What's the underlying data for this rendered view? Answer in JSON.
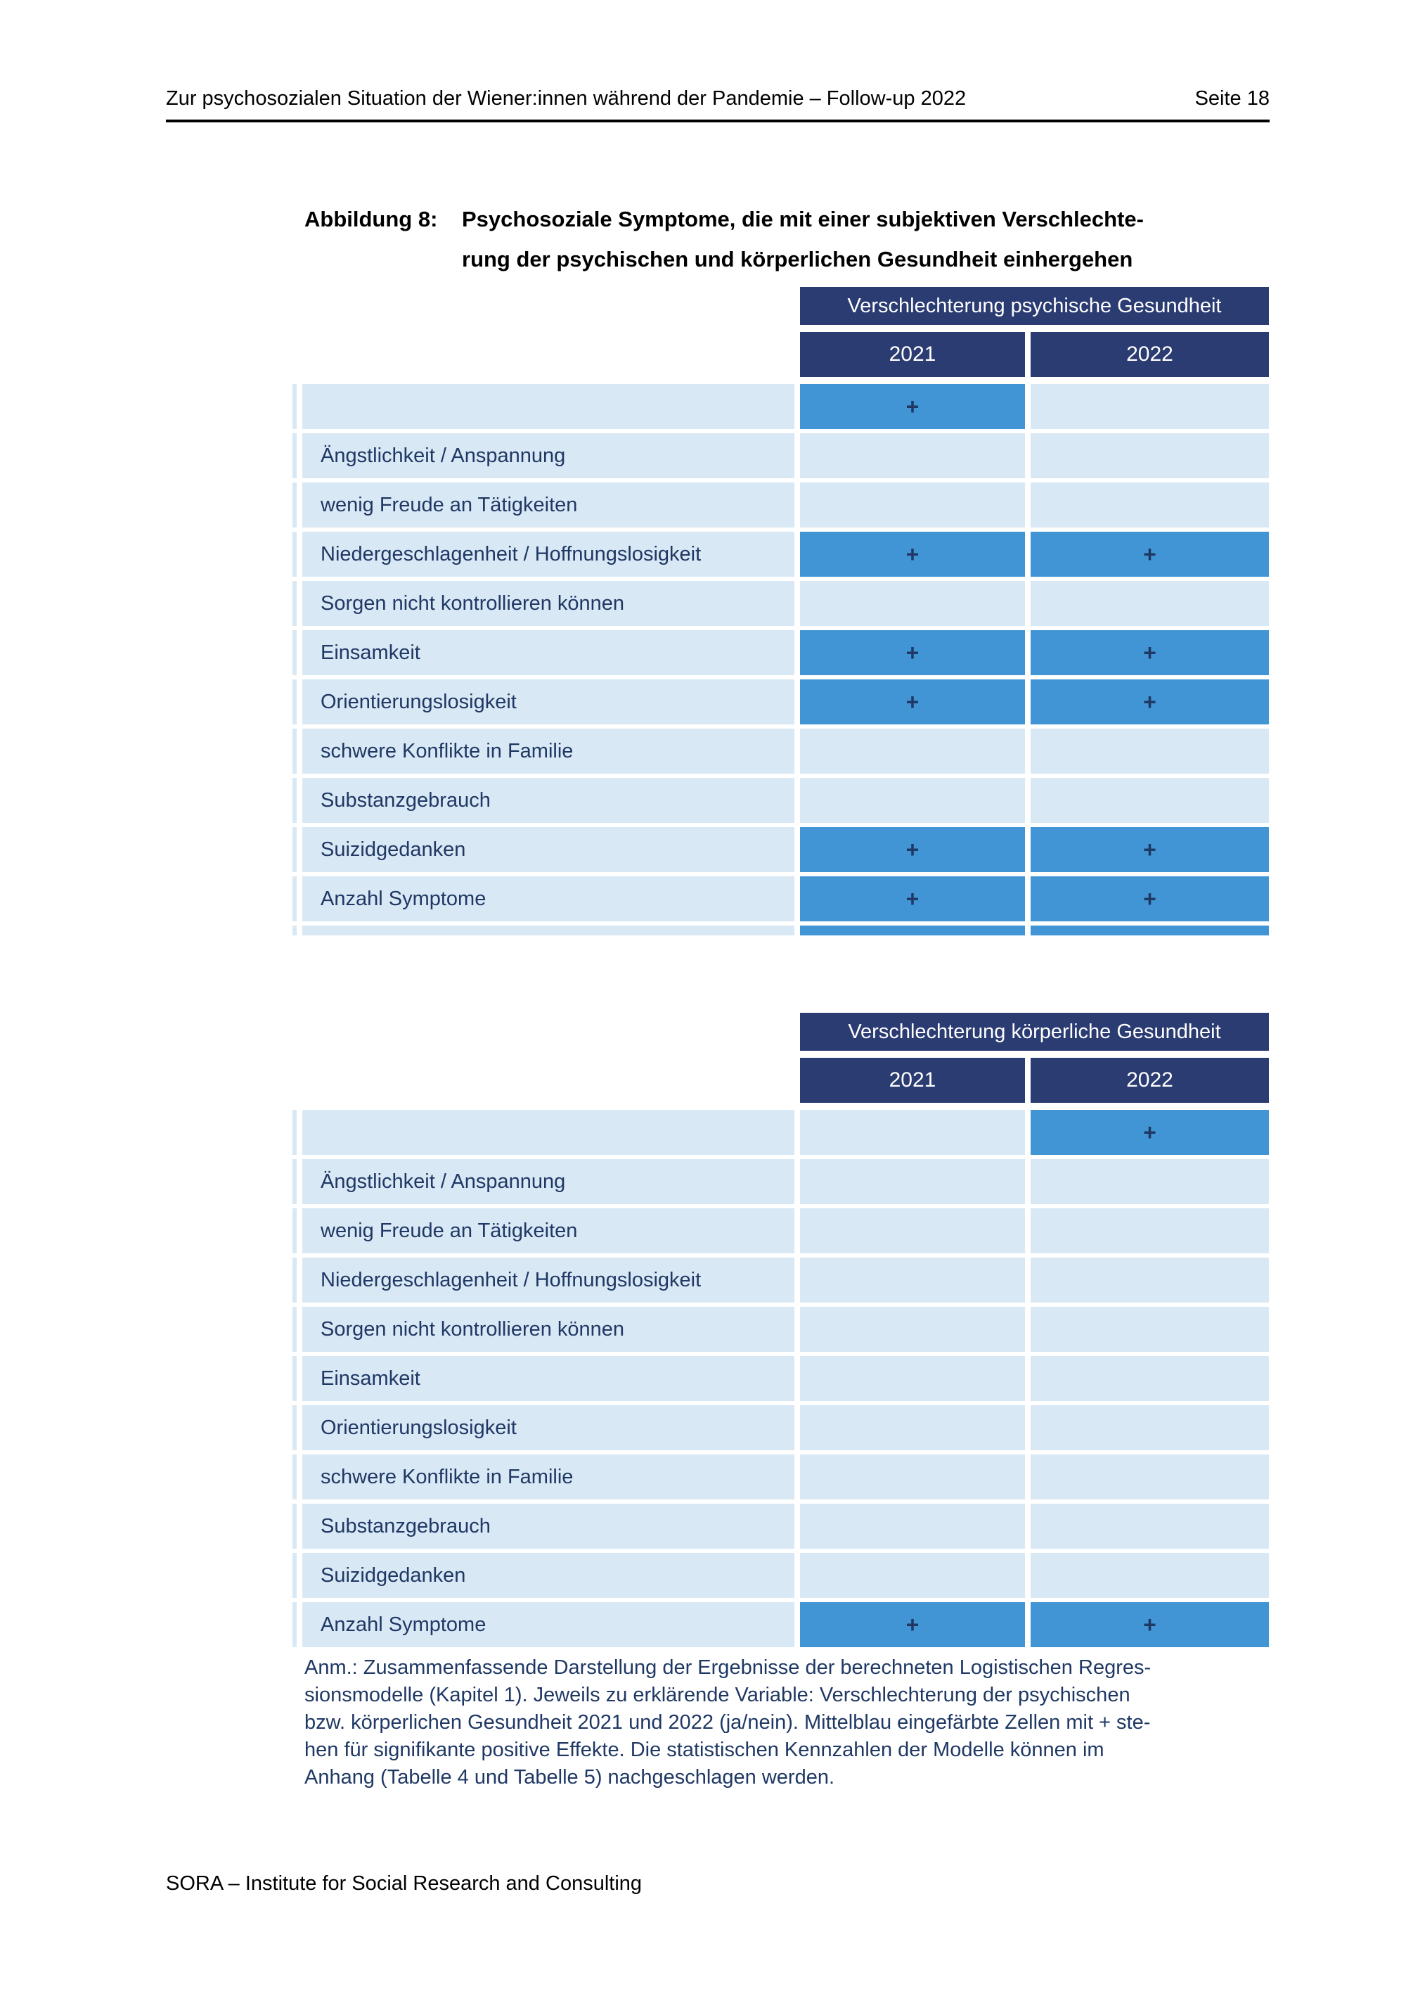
{
  "header": {
    "title": "Zur psychosozialen Situation der Wiener:innen während der Pandemie – Follow-up 2022",
    "page": "Seite 18"
  },
  "figure": {
    "label": "Abbildung 8:",
    "title_line1": "Psychosoziale Symptome, die mit einer subjektiven Verschlechte-",
    "title_line2": "rung der psychischen und körperlichen Gesundheit einhergehen"
  },
  "colors": {
    "navy": "#2B3C72",
    "mid_blue": "#4295D5",
    "light_blue": "#D9E8F5",
    "text_navy": "#1F3864"
  },
  "plus_symbol": "+",
  "tables": [
    {
      "banner": "Verschlechterung psychische Gesundheit",
      "columns": [
        "2021",
        "2022"
      ],
      "rows": [
        {
          "label": "",
          "y2021": "+",
          "y2022": ""
        },
        {
          "label": "Ängstlichkeit / Anspannung",
          "y2021": "",
          "y2022": ""
        },
        {
          "label": "wenig Freude an Tätigkeiten",
          "y2021": "",
          "y2022": ""
        },
        {
          "label": "Niedergeschlagenheit / Hoffnungslosigkeit",
          "y2021": "+",
          "y2022": "+"
        },
        {
          "label": "Sorgen nicht kontrollieren können",
          "y2021": "",
          "y2022": ""
        },
        {
          "label": "Einsamkeit",
          "y2021": "+",
          "y2022": "+"
        },
        {
          "label": "Orientierungslosigkeit",
          "y2021": "+",
          "y2022": "+"
        },
        {
          "label": "schwere Konflikte in Familie",
          "y2021": "",
          "y2022": ""
        },
        {
          "label": "Substanzgebrauch",
          "y2021": "",
          "y2022": ""
        },
        {
          "label": "Suizidgedanken",
          "y2021": "+",
          "y2022": "+"
        },
        {
          "label": "Anzahl Symptome",
          "y2021": "+",
          "y2022": "+"
        },
        {
          "label": "",
          "y2021": "",
          "y2022": "",
          "partial": true,
          "filled": true
        }
      ]
    },
    {
      "banner": "Verschlechterung körperliche Gesundheit",
      "columns": [
        "2021",
        "2022"
      ],
      "rows": [
        {
          "label": "",
          "y2021": "",
          "y2022": "+"
        },
        {
          "label": "Ängstlichkeit / Anspannung",
          "y2021": "",
          "y2022": ""
        },
        {
          "label": "wenig Freude an Tätigkeiten",
          "y2021": "",
          "y2022": ""
        },
        {
          "label": "Niedergeschlagenheit / Hoffnungslosigkeit",
          "y2021": "",
          "y2022": ""
        },
        {
          "label": "Sorgen nicht kontrollieren können",
          "y2021": "",
          "y2022": ""
        },
        {
          "label": "Einsamkeit",
          "y2021": "",
          "y2022": ""
        },
        {
          "label": "Orientierungslosigkeit",
          "y2021": "",
          "y2022": ""
        },
        {
          "label": "schwere Konflikte in Familie",
          "y2021": "",
          "y2022": ""
        },
        {
          "label": "Substanzgebrauch",
          "y2021": "",
          "y2022": ""
        },
        {
          "label": "Suizidgedanken",
          "y2021": "",
          "y2022": ""
        },
        {
          "label": "Anzahl Symptome",
          "y2021": "+",
          "y2022": "+"
        }
      ]
    }
  ],
  "note": {
    "lines": [
      "Anm.: Zusammenfassende Darstellung der Ergebnisse der berechneten Logistischen Regres-",
      "sionsmodelle (Kapitel 1). Jeweils zu erklärende Variable: Verschlechterung der psychischen",
      "bzw. körperlichen Gesundheit 2021 und 2022 (ja/nein). Mittelblau eingefärbte Zellen mit + ste-",
      "hen für signifikante positive Effekte. Die statistischen Kennzahlen der Modelle können im",
      "Anhang (Tabelle 4 und Tabelle 5) nachgeschlagen werden."
    ]
  },
  "footer": {
    "text": "SORA – Institute for Social Research and Consulting"
  }
}
